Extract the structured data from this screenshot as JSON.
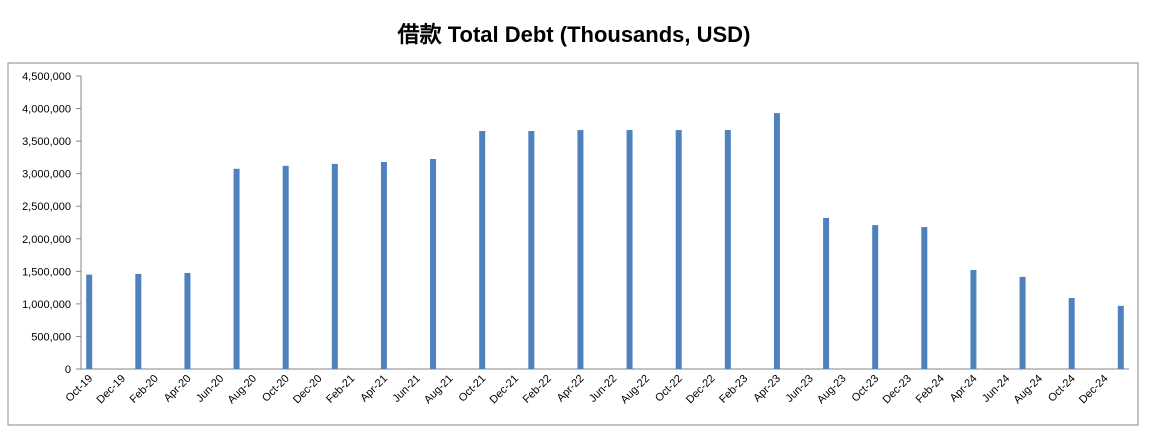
{
  "chart_data": {
    "type": "bar",
    "title": "借款 Total Debt (Thousands, USD)",
    "categories": [
      "Oct-19",
      null,
      "Dec-19",
      null,
      "Feb-20",
      null,
      "Apr-20",
      null,
      "Jun-20",
      null,
      "Aug-20",
      null,
      "Oct-20",
      null,
      "Dec-20",
      null,
      "Feb-21",
      null,
      "Apr-21",
      null,
      "Jun-21",
      null,
      "Aug-21",
      null,
      "Oct-21",
      null,
      "Dec-21",
      null,
      "Feb-22",
      null,
      "Apr-22",
      null,
      "Jun-22",
      null,
      "Aug-22",
      null,
      "Oct-22",
      null,
      "Dec-22",
      null,
      "Feb-23",
      null,
      "Apr-23",
      null,
      "Jun-23",
      null,
      "Aug-23",
      null,
      "Oct-23",
      null,
      "Dec-23",
      null,
      "Feb-24",
      null,
      "Apr-24",
      null,
      "Jun-24",
      null,
      "Aug-24",
      null,
      "Oct-24",
      null,
      "Dec-24",
      null
    ],
    "values": [
      1450000,
      null,
      null,
      1460000,
      null,
      null,
      1475000,
      null,
      null,
      3075000,
      null,
      null,
      3120000,
      null,
      null,
      3150000,
      null,
      null,
      3180000,
      null,
      null,
      3225000,
      null,
      null,
      3655000,
      null,
      null,
      3655000,
      null,
      null,
      3670000,
      null,
      null,
      3670000,
      null,
      null,
      3670000,
      null,
      null,
      3670000,
      null,
      null,
      3930000,
      null,
      null,
      2320000,
      null,
      null,
      2210000,
      null,
      null,
      2180000,
      null,
      null,
      1520000,
      null,
      null,
      1415000,
      null,
      null,
      1090000,
      null,
      null,
      970000
    ],
    "color": "#4f81bd",
    "ylim": [
      0,
      4500000
    ],
    "yticks": [
      0,
      {
        "value": 500000,
        "label": "500,000"
      },
      {
        "value": 1000000,
        "label": "1,000,000"
      },
      {
        "value": 1500000,
        "label": "1,500,000"
      },
      {
        "value": 2000000,
        "label": "2,000,000"
      },
      {
        "value": 2500000,
        "label": "2,500,000"
      },
      {
        "value": 3000000,
        "label": "3,000,000"
      },
      {
        "value": 3500000,
        "label": "3,500,000"
      },
      {
        "value": 4000000,
        "label": "4,000,000"
      },
      {
        "value": 4500000,
        "label": "4,500,000"
      }
    ],
    "grid": false
  }
}
